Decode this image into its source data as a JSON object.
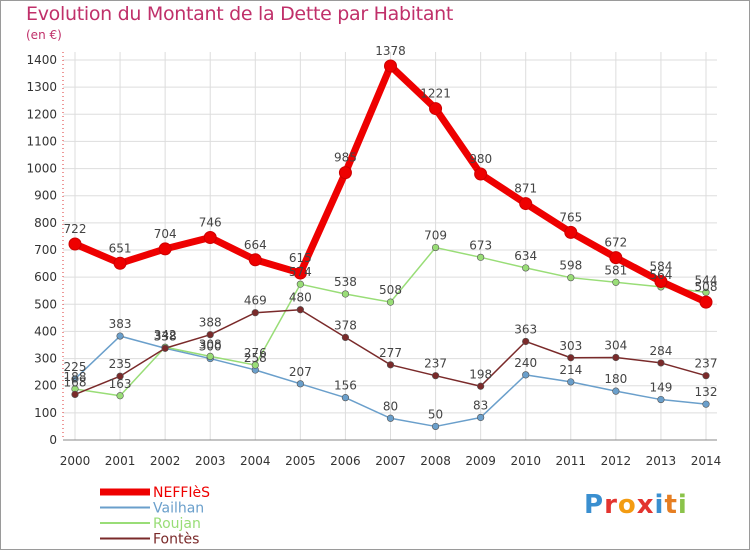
{
  "title": "Evolution du Montant de la Dette par Habitant",
  "subtitle": "(en €)",
  "logo": {
    "text": "Proxiti",
    "letters": [
      {
        "ch": "P",
        "color": "#3a8fd0"
      },
      {
        "ch": "r",
        "color": "#e3342f"
      },
      {
        "ch": "o",
        "color": "#f39c12"
      },
      {
        "ch": "x",
        "color": "#e3342f"
      },
      {
        "ch": "i",
        "color": "#3a8fd0"
      },
      {
        "ch": "t",
        "color": "#e67e22"
      },
      {
        "ch": "i",
        "color": "#8bc34a"
      }
    ]
  },
  "chart_data": {
    "type": "line",
    "title": "Evolution du Montant de la Dette par Habitant",
    "subtitle": "(en €)",
    "xlabel": "",
    "ylabel": "",
    "x": [
      "2000",
      "2001",
      "2002",
      "2003",
      "2004",
      "2005",
      "2006",
      "2007",
      "2008",
      "2009",
      "2010",
      "2011",
      "2012",
      "2013",
      "2014"
    ],
    "ylim": [
      0,
      1400
    ],
    "yticks": [
      0,
      100,
      200,
      300,
      400,
      500,
      600,
      700,
      800,
      900,
      1000,
      1100,
      1200,
      1300,
      1400
    ],
    "grid": true,
    "legend_position": "bottom-left",
    "series": [
      {
        "name": "NEFFIèS",
        "color": "#ee0000",
        "values": [
          722,
          651,
          704,
          746,
          664,
          615,
          985,
          1378,
          1221,
          980,
          871,
          765,
          672,
          584,
          508
        ]
      },
      {
        "name": "Vailhan",
        "color": "#6a9fcb",
        "values": [
          225,
          383,
          338,
          300,
          258,
          207,
          156,
          80,
          50,
          83,
          240,
          214,
          180,
          149,
          132
        ]
      },
      {
        "name": "Roujan",
        "color": "#99dd77",
        "values": [
          188,
          163,
          342,
          308,
          276,
          574,
          538,
          508,
          709,
          673,
          634,
          598,
          581,
          564,
          544
        ]
      },
      {
        "name": "Fontès",
        "color": "#7a2a2a",
        "values": [
          168,
          235,
          338,
          388,
          469,
          480,
          378,
          277,
          237,
          198,
          363,
          303,
          304,
          284,
          237
        ]
      }
    ]
  }
}
